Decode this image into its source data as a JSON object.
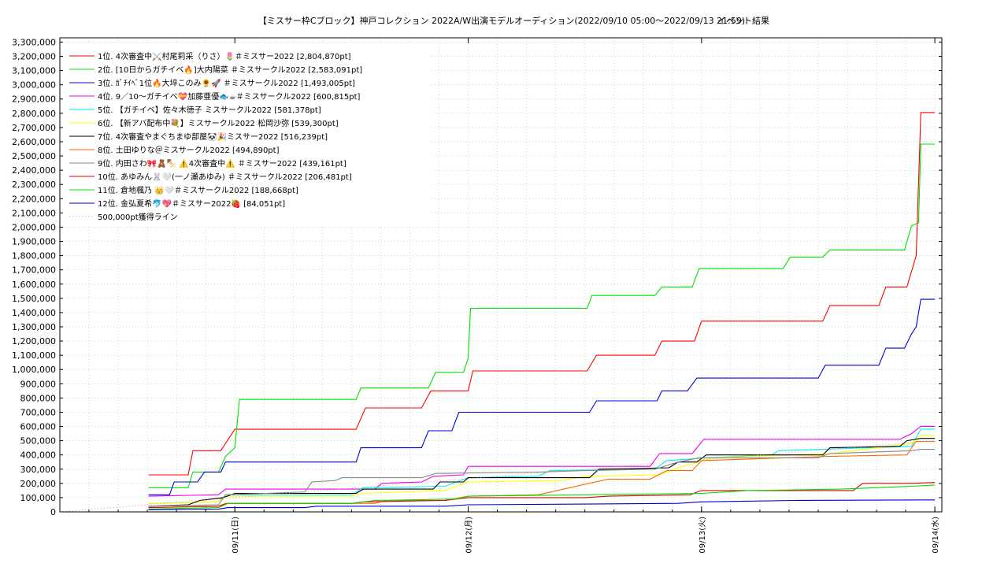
{
  "title": "【ミスサー枠Cブロック】神戸コレクション 2022A/W出演モデルオーディション(2022/09/10 05:00～2022/09/13 21:59)",
  "subtitle": "イベント結果",
  "chart_data": {
    "type": "line",
    "title": "【ミスサー枠Cブロック】神戸コレクション 2022A/W出演モデルオーディション(2022/09/10 05:00～2022/09/13 21:59)",
    "subtitle": "イベント結果",
    "x_unit": "day",
    "xlim": [
      -0.75,
      3.03
    ],
    "ylim": [
      0,
      3330000
    ],
    "yticks": [
      0,
      100000,
      200000,
      300000,
      400000,
      500000,
      600000,
      700000,
      800000,
      900000,
      1000000,
      1100000,
      1200000,
      1300000,
      1400000,
      1500000,
      1600000,
      1700000,
      1800000,
      1900000,
      2000000,
      2100000,
      2200000,
      2300000,
      2400000,
      2500000,
      2600000,
      2700000,
      2800000,
      2900000,
      3000000,
      3100000,
      3200000,
      3300000
    ],
    "ytick_labels": [
      "0",
      "100,000",
      "200,000",
      "300,000",
      "400,000",
      "500,000",
      "600,000",
      "700,000",
      "800,000",
      "900,000",
      "1,000,000",
      "1,100,000",
      "1,200,000",
      "1,300,000",
      "1,400,000",
      "1,500,000",
      "1,600,000",
      "1,700,000",
      "1,800,000",
      "1,900,000",
      "2,000,000",
      "2,100,000",
      "2,200,000",
      "2,300,000",
      "2,400,000",
      "2,500,000",
      "2,600,000",
      "2,700,000",
      "2,800,000",
      "2,900,000",
      "3,000,000",
      "3,100,000",
      "3,200,000",
      "3,300,000"
    ],
    "xticks": [
      0,
      1,
      2,
      3
    ],
    "xtick_labels": [
      "09/11(日)",
      "09/12(月)",
      "09/13(火)",
      "09/14(水)"
    ],
    "grid": true,
    "legend_position": "top-left",
    "series": [
      {
        "name": "1位. 4次審査中⚔️村尾莉采（りさ）🌷＃ミスサー2022 [2,804,870pt]",
        "color": "#ff0000",
        "points": [
          [
            -0.37,
            260000
          ],
          [
            -0.2,
            260000
          ],
          [
            -0.18,
            430000
          ],
          [
            -0.06,
            430000
          ],
          [
            0,
            580000
          ],
          [
            0.52,
            580000
          ],
          [
            0.56,
            730000
          ],
          [
            0.8,
            730000
          ],
          [
            0.84,
            850000
          ],
          [
            1.0,
            850000
          ],
          [
            1.02,
            990000
          ],
          [
            1.51,
            990000
          ],
          [
            1.55,
            1100000
          ],
          [
            1.8,
            1100000
          ],
          [
            1.83,
            1200000
          ],
          [
            1.97,
            1200000
          ],
          [
            2.0,
            1340000
          ],
          [
            2.52,
            1340000
          ],
          [
            2.55,
            1450000
          ],
          [
            2.76,
            1450000
          ],
          [
            2.79,
            1580000
          ],
          [
            2.88,
            1580000
          ],
          [
            2.92,
            1800000
          ],
          [
            2.94,
            2804870
          ],
          [
            3.0,
            2804870
          ]
        ]
      },
      {
        "name": "2位. [10日からガチイベ🔥]大内陽菜 ＃ミスサークル2022 [2,583,091pt]",
        "color": "#00e000",
        "points": [
          [
            -0.37,
            170000
          ],
          [
            -0.2,
            170000
          ],
          [
            -0.18,
            280000
          ],
          [
            -0.07,
            280000
          ],
          [
            -0.04,
            390000
          ],
          [
            0.0,
            450000
          ],
          [
            0.02,
            790000
          ],
          [
            0.52,
            790000
          ],
          [
            0.54,
            870000
          ],
          [
            0.83,
            870000
          ],
          [
            0.86,
            980000
          ],
          [
            0.98,
            980000
          ],
          [
            1.0,
            1080000
          ],
          [
            1.01,
            1430000
          ],
          [
            1.51,
            1430000
          ],
          [
            1.53,
            1520000
          ],
          [
            1.8,
            1520000
          ],
          [
            1.83,
            1580000
          ],
          [
            1.96,
            1580000
          ],
          [
            1.99,
            1710000
          ],
          [
            2.35,
            1710000
          ],
          [
            2.38,
            1790000
          ],
          [
            2.52,
            1790000
          ],
          [
            2.55,
            1840000
          ],
          [
            2.87,
            1840000
          ],
          [
            2.9,
            2010000
          ],
          [
            2.93,
            2030000
          ],
          [
            2.94,
            2583091
          ],
          [
            3.0,
            2583091
          ]
        ]
      },
      {
        "name": "3位. ｶﾞﾁｲﾍﾞ1位🔥大埣このみ🌻🚀 ＃ミスサークル2022 [1,493,005pt]",
        "color": "#0000dd",
        "points": [
          [
            -0.37,
            120000
          ],
          [
            -0.28,
            120000
          ],
          [
            -0.26,
            210000
          ],
          [
            -0.16,
            210000
          ],
          [
            -0.13,
            280000
          ],
          [
            -0.06,
            280000
          ],
          [
            -0.04,
            350000
          ],
          [
            0.52,
            350000
          ],
          [
            0.54,
            450000
          ],
          [
            0.8,
            450000
          ],
          [
            0.83,
            570000
          ],
          [
            0.93,
            570000
          ],
          [
            0.96,
            700000
          ],
          [
            1.52,
            700000
          ],
          [
            1.55,
            780000
          ],
          [
            1.81,
            780000
          ],
          [
            1.83,
            850000
          ],
          [
            1.94,
            850000
          ],
          [
            1.98,
            940000
          ],
          [
            2.5,
            940000
          ],
          [
            2.53,
            1030000
          ],
          [
            2.76,
            1030000
          ],
          [
            2.79,
            1150000
          ],
          [
            2.87,
            1150000
          ],
          [
            2.9,
            1250000
          ],
          [
            2.92,
            1300000
          ],
          [
            2.94,
            1493005
          ],
          [
            3.0,
            1493005
          ]
        ]
      },
      {
        "name": "4位. 9／10～ガチイベ💝加藤亜優🐟☕＃ミスサークル2022 [600,815pt]",
        "color": "#ee00ee",
        "points": [
          [
            -0.37,
            110000
          ],
          [
            -0.07,
            120000
          ],
          [
            -0.04,
            160000
          ],
          [
            0.6,
            160000
          ],
          [
            0.63,
            200000
          ],
          [
            0.8,
            210000
          ],
          [
            0.85,
            250000
          ],
          [
            0.98,
            260000
          ],
          [
            1.0,
            320000
          ],
          [
            1.78,
            320000
          ],
          [
            1.82,
            410000
          ],
          [
            1.96,
            410000
          ],
          [
            2.01,
            510000
          ],
          [
            2.85,
            510000
          ],
          [
            2.9,
            550000
          ],
          [
            2.94,
            600815
          ],
          [
            3.0,
            600815
          ]
        ]
      },
      {
        "name": "5位. 【ガチイベ】佐々木徳子 ミスサークル2022 [581,378pt]",
        "color": "#00eeee",
        "points": [
          [
            -0.37,
            60000
          ],
          [
            -0.07,
            70000
          ],
          [
            -0.04,
            120000
          ],
          [
            0.5,
            120000
          ],
          [
            0.52,
            140000
          ],
          [
            0.55,
            170000
          ],
          [
            0.9,
            180000
          ],
          [
            1.0,
            240000
          ],
          [
            1.3,
            250000
          ],
          [
            1.35,
            290000
          ],
          [
            1.8,
            300000
          ],
          [
            1.85,
            360000
          ],
          [
            2.03,
            380000
          ],
          [
            2.3,
            400000
          ],
          [
            2.33,
            430000
          ],
          [
            2.9,
            460000
          ],
          [
            2.94,
            581378
          ],
          [
            3.0,
            581378
          ]
        ]
      },
      {
        "name": "6位. 【新アバ配布中💐】ミスサークル2022 松岡沙弥 [539,300pt]",
        "color": "#ffff00",
        "points": [
          [
            -0.37,
            60000
          ],
          [
            -0.07,
            70000
          ],
          [
            -0.04,
            110000
          ],
          [
            0.5,
            110000
          ],
          [
            0.55,
            130000
          ],
          [
            0.9,
            150000
          ],
          [
            1.0,
            210000
          ],
          [
            1.4,
            220000
          ],
          [
            1.5,
            250000
          ],
          [
            1.82,
            260000
          ],
          [
            1.9,
            310000
          ],
          [
            2.05,
            380000
          ],
          [
            2.55,
            410000
          ],
          [
            2.9,
            480000
          ],
          [
            2.94,
            539300
          ],
          [
            3.0,
            539300
          ]
        ]
      },
      {
        "name": "7位. 4次審査やまぐちまゆ部屋🐼🎉ミスサー2022 [516,239pt]",
        "color": "#000000",
        "points": [
          [
            -0.37,
            40000
          ],
          [
            -0.2,
            50000
          ],
          [
            -0.15,
            80000
          ],
          [
            -0.05,
            100000
          ],
          [
            0,
            130000
          ],
          [
            0.52,
            130000
          ],
          [
            0.55,
            160000
          ],
          [
            0.85,
            160000
          ],
          [
            0.88,
            210000
          ],
          [
            0.98,
            210000
          ],
          [
            1.0,
            240000
          ],
          [
            1.52,
            240000
          ],
          [
            1.56,
            300000
          ],
          [
            1.86,
            310000
          ],
          [
            1.9,
            350000
          ],
          [
            1.98,
            350000
          ],
          [
            2.02,
            400000
          ],
          [
            2.52,
            400000
          ],
          [
            2.55,
            450000
          ],
          [
            2.85,
            460000
          ],
          [
            2.88,
            500000
          ],
          [
            2.94,
            516239
          ],
          [
            3.0,
            516239
          ]
        ]
      },
      {
        "name": "8位. 土田ゆりな＠ミスサークル2022 [494,890pt]",
        "color": "#ff6600",
        "points": [
          [
            -0.37,
            30000
          ],
          [
            -0.07,
            40000
          ],
          [
            -0.04,
            60000
          ],
          [
            0.6,
            60000
          ],
          [
            0.65,
            80000
          ],
          [
            0.9,
            80000
          ],
          [
            1.0,
            110000
          ],
          [
            1.3,
            120000
          ],
          [
            1.6,
            230000
          ],
          [
            1.78,
            230000
          ],
          [
            1.85,
            290000
          ],
          [
            1.96,
            290000
          ],
          [
            2.0,
            360000
          ],
          [
            2.55,
            390000
          ],
          [
            2.88,
            400000
          ],
          [
            2.92,
            494890
          ],
          [
            3.0,
            494890
          ]
        ]
      },
      {
        "name": "9位. 内田さわ🎀🧸🍢 ⚠️4次審査中⚠️ ＃ミスサー2022 [439,161pt]",
        "color": "#888888",
        "points": [
          [
            -0.37,
            40000
          ],
          [
            -0.07,
            50000
          ],
          [
            -0.04,
            120000
          ],
          [
            0.3,
            140000
          ],
          [
            0.33,
            210000
          ],
          [
            0.43,
            220000
          ],
          [
            0.46,
            240000
          ],
          [
            0.8,
            240000
          ],
          [
            0.86,
            270000
          ],
          [
            1.3,
            280000
          ],
          [
            1.5,
            290000
          ],
          [
            1.8,
            300000
          ],
          [
            1.9,
            350000
          ],
          [
            1.99,
            380000
          ],
          [
            2.5,
            380000
          ],
          [
            2.55,
            410000
          ],
          [
            2.9,
            430000
          ],
          [
            2.94,
            439161
          ],
          [
            3.0,
            439161
          ]
        ]
      },
      {
        "name": "10位. あゆみん🐰🤍(一ノ瀬あゆみ) ＃ミスサークル2022 [206,481pt]",
        "color": "#dd0000",
        "points": [
          [
            -0.37,
            30000
          ],
          [
            -0.07,
            40000
          ],
          [
            -0.03,
            60000
          ],
          [
            0.5,
            60000
          ],
          [
            0.55,
            70000
          ],
          [
            0.9,
            80000
          ],
          [
            1.0,
            100000
          ],
          [
            1.5,
            100000
          ],
          [
            1.6,
            110000
          ],
          [
            1.95,
            120000
          ],
          [
            2.0,
            150000
          ],
          [
            2.65,
            150000
          ],
          [
            2.69,
            200000
          ],
          [
            2.9,
            200000
          ],
          [
            3.0,
            206481
          ]
        ]
      },
      {
        "name": "11位. 倉地楓乃 👑🤍＃ミスサークル2022 [188,668pt]",
        "color": "#00dd00",
        "points": [
          [
            -0.37,
            20000
          ],
          [
            -0.07,
            30000
          ],
          [
            -0.03,
            60000
          ],
          [
            0.5,
            60000
          ],
          [
            0.6,
            80000
          ],
          [
            0.95,
            90000
          ],
          [
            1.0,
            110000
          ],
          [
            1.5,
            120000
          ],
          [
            2.0,
            130000
          ],
          [
            2.2,
            150000
          ],
          [
            2.6,
            160000
          ],
          [
            2.9,
            180000
          ],
          [
            3.0,
            188668
          ]
        ]
      },
      {
        "name": "12位. 金弘夏希🐬💖＃ミスサー2022🍓 [84,051pt]",
        "color": "#0000cc",
        "points": [
          [
            -0.37,
            15000
          ],
          [
            -0.07,
            20000
          ],
          [
            -0.03,
            30000
          ],
          [
            0.3,
            30000
          ],
          [
            0.35,
            40000
          ],
          [
            0.9,
            40000
          ],
          [
            1.0,
            50000
          ],
          [
            1.5,
            55000
          ],
          [
            1.9,
            60000
          ],
          [
            2.0,
            70000
          ],
          [
            2.4,
            80000
          ],
          [
            3.0,
            84051
          ]
        ]
      },
      {
        "name": "500,000pt獲得ライン",
        "color": "#ff8888",
        "dotted": true,
        "points": [
          [
            -0.75,
            0
          ],
          [
            3.0,
            500000
          ]
        ]
      }
    ]
  }
}
